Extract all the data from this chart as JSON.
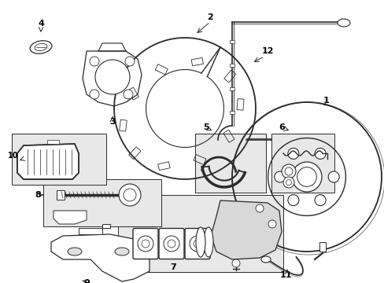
{
  "background_color": "#ffffff",
  "line_color": "#2a2a2a",
  "box_fill": "#eeeeee",
  "fig_width": 4.89,
  "fig_height": 3.6,
  "dpi": 100
}
